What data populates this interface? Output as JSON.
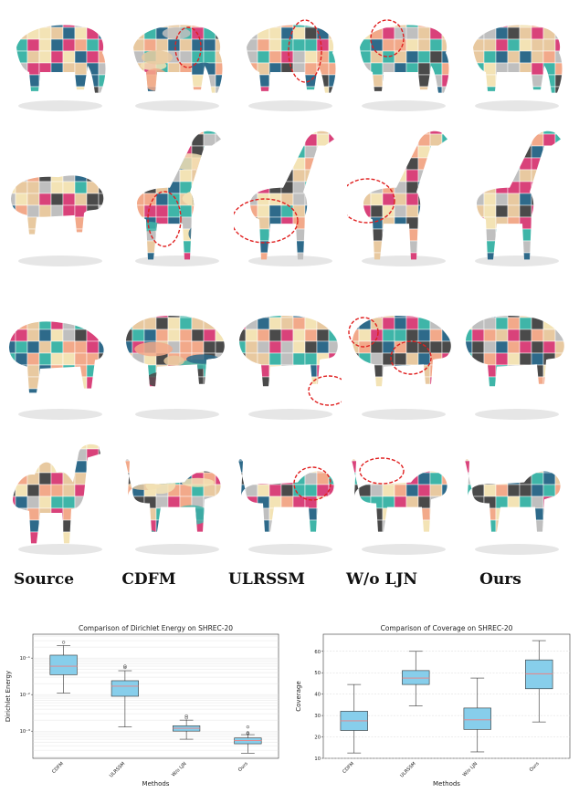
{
  "figure": {
    "rows": [
      {
        "name": "elephant"
      },
      {
        "name": "giraffe"
      },
      {
        "name": "pig"
      },
      {
        "name": "dog"
      }
    ],
    "source_shapes": [
      "elephant",
      "bison",
      "bear",
      "camel"
    ],
    "column_labels": [
      "Source",
      "CDFM",
      "ULRSSM",
      "W/o LJN",
      "Ours"
    ],
    "palette": [
      "#e8c9a0",
      "#d9427a",
      "#3fb5a8",
      "#2e6a8a",
      "#f2a98a",
      "#bfbfbf",
      "#4a4a4a",
      "#f3e3b5"
    ],
    "highlight_color": "#e02020"
  },
  "chart_data": [
    {
      "type": "box",
      "title": "Comparison of Dirichlet Energy on SHREC-20",
      "xlabel": "Methods",
      "ylabel": "Dirichlet Energy",
      "yscale": "log",
      "yticks": [
        "10⁻¹",
        "10⁻²",
        "10⁻³"
      ],
      "grid": true,
      "categories": [
        "CDFM",
        "ULRSSM",
        "W/o LJN",
        "Ours"
      ],
      "boxes": [
        {
          "whislo": 0.011,
          "q1": 0.035,
          "med": 0.06,
          "q3": 0.12,
          "whishi": 0.22,
          "fliers": [
            0.27
          ]
        },
        {
          "whislo": 0.0013,
          "q1": 0.009,
          "med": 0.017,
          "q3": 0.024,
          "whishi": 0.045,
          "fliers": [
            0.055,
            0.06
          ]
        },
        {
          "whislo": 0.0006,
          "q1": 0.001,
          "med": 0.0012,
          "q3": 0.0014,
          "whishi": 0.002,
          "fliers": [
            0.0023,
            0.0026
          ]
        },
        {
          "whislo": 0.00025,
          "q1": 0.00045,
          "med": 0.00055,
          "q3": 0.00065,
          "whishi": 0.0008,
          "fliers": [
            0.00085,
            0.0009,
            0.0013
          ]
        }
      ]
    },
    {
      "type": "box",
      "title": "Comparison of Coverage on SHREC-20",
      "xlabel": "Methods",
      "ylabel": "Coverage",
      "ylim": [
        10,
        68
      ],
      "yticks": [
        10,
        20,
        30,
        40,
        50,
        60
      ],
      "grid": true,
      "categories": [
        "CDFM",
        "ULRSSM",
        "W/o LJN",
        "Ours"
      ],
      "boxes": [
        {
          "whislo": 12.5,
          "q1": 23,
          "med": 27.5,
          "q3": 32,
          "whishi": 44.5
        },
        {
          "whislo": 34.5,
          "q1": 44.5,
          "med": 47.5,
          "q3": 51,
          "whishi": 60
        },
        {
          "whislo": 13,
          "q1": 23.5,
          "med": 28,
          "q3": 33.5,
          "whishi": 47.5
        },
        {
          "whislo": 27,
          "q1": 42.5,
          "med": 49.5,
          "q3": 56,
          "whishi": 65
        }
      ]
    }
  ]
}
